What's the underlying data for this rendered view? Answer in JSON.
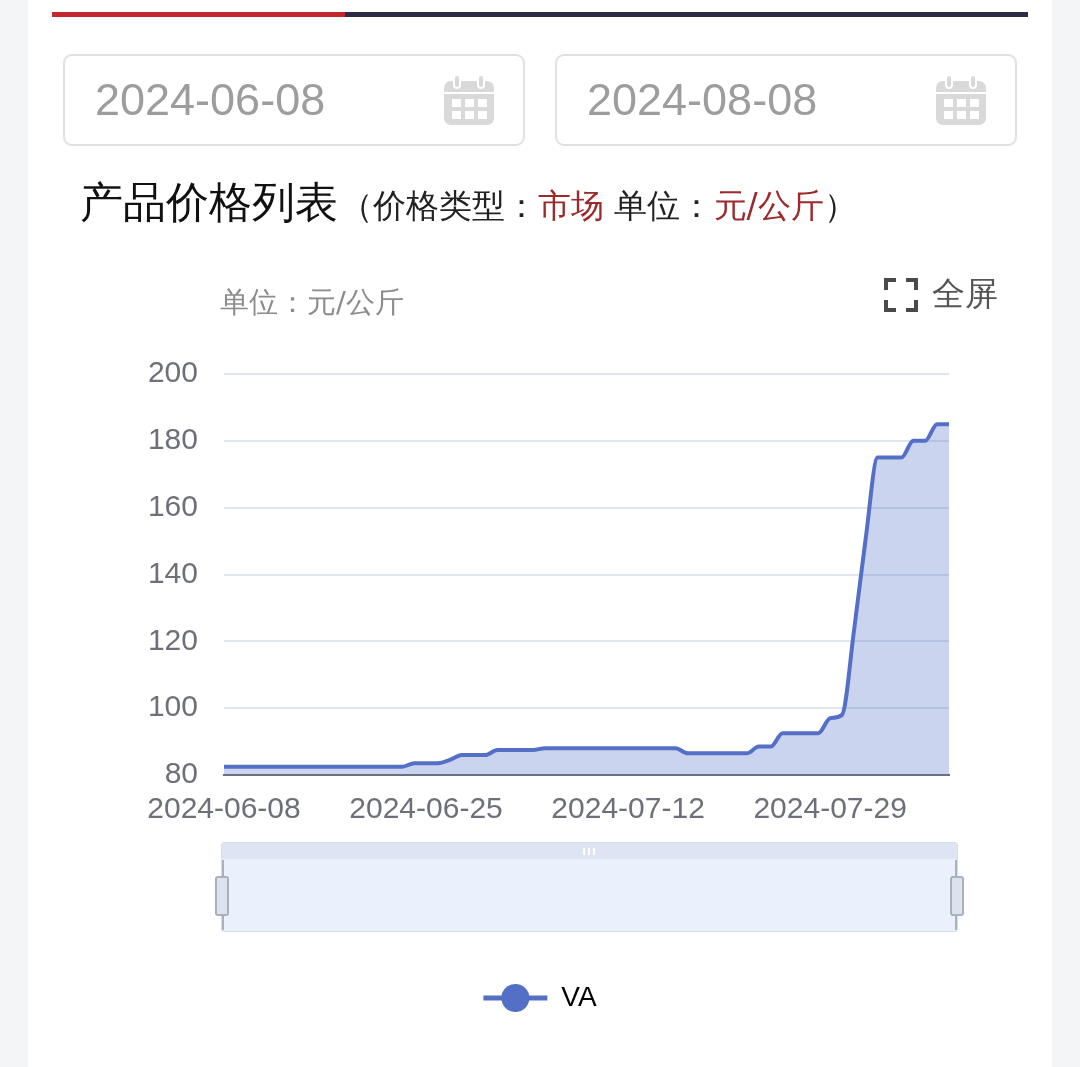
{
  "chart_data": {
    "type": "area",
    "title": "产品价格列表",
    "subtitle": "（价格类型：市场 单位：元/公斤）",
    "ylabel": "单位：元/公斤",
    "annotations": [
      "2024-06-08",
      "2024-08-08",
      "全屏"
    ],
    "x": [
      "2024-06-08",
      "2024-06-09",
      "2024-06-10",
      "2024-06-11",
      "2024-06-12",
      "2024-06-13",
      "2024-06-14",
      "2024-06-15",
      "2024-06-16",
      "2024-06-17",
      "2024-06-18",
      "2024-06-19",
      "2024-06-20",
      "2024-06-21",
      "2024-06-22",
      "2024-06-23",
      "2024-06-24",
      "2024-06-25",
      "2024-06-26",
      "2024-06-27",
      "2024-06-28",
      "2024-06-29",
      "2024-06-30",
      "2024-07-01",
      "2024-07-02",
      "2024-07-03",
      "2024-07-04",
      "2024-07-05",
      "2024-07-06",
      "2024-07-07",
      "2024-07-08",
      "2024-07-09",
      "2024-07-10",
      "2024-07-11",
      "2024-07-12",
      "2024-07-13",
      "2024-07-14",
      "2024-07-15",
      "2024-07-16",
      "2024-07-17",
      "2024-07-18",
      "2024-07-19",
      "2024-07-20",
      "2024-07-21",
      "2024-07-22",
      "2024-07-23",
      "2024-07-24",
      "2024-07-25",
      "2024-07-26",
      "2024-07-27",
      "2024-07-28",
      "2024-07-29",
      "2024-07-30",
      "2024-07-31",
      "2024-08-01",
      "2024-08-02",
      "2024-08-03",
      "2024-08-04",
      "2024-08-05",
      "2024-08-06",
      "2024-08-07",
      "2024-08-08"
    ],
    "series": [
      {
        "name": "VA",
        "color": "#5470c6",
        "values": [
          82.5,
          82.5,
          82.5,
          82.5,
          82.5,
          82.5,
          82.5,
          82.5,
          82.5,
          82.5,
          82.5,
          82.5,
          82.5,
          82.5,
          82.5,
          82.5,
          83.5,
          83.5,
          83.5,
          84.5,
          86,
          86,
          86,
          87.5,
          87.5,
          87.5,
          87.5,
          88,
          88,
          88,
          88,
          88,
          88,
          88,
          88,
          88,
          88,
          88,
          88,
          86.5,
          86.5,
          86.5,
          86.5,
          86.5,
          86.5,
          88.5,
          88.5,
          92.5,
          92.5,
          92.5,
          92.5,
          97,
          98,
          123,
          151,
          175,
          175,
          175,
          180,
          180,
          185,
          185
        ]
      }
    ],
    "xlim": [
      "2024-06-08",
      "2024-08-08"
    ],
    "xticks": [
      "2024-06-08",
      "2024-06-25",
      "2024-07-12",
      "2024-07-29"
    ],
    "ylim": [
      80,
      200
    ],
    "yticks": [
      80,
      100,
      120,
      140,
      160,
      180,
      200
    ],
    "grid": "y",
    "legend": "bottom",
    "marker": "none",
    "line_style": "solid"
  }
}
